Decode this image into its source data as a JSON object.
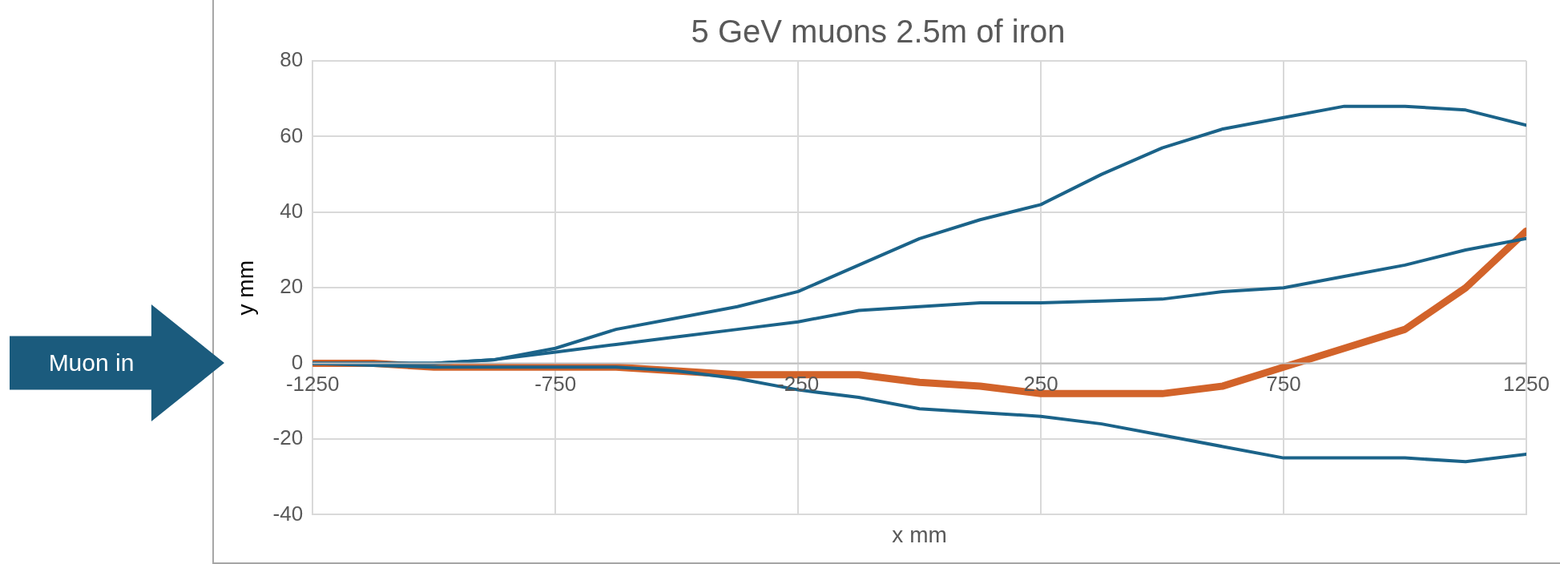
{
  "chart_data": {
    "type": "line",
    "title": "5 GeV muons 2.5m of iron",
    "xlabel": "x mm",
    "ylabel": "y mm",
    "annotations": [
      "Muon in"
    ],
    "x": [
      -1250,
      -1125,
      -1000,
      -875,
      -750,
      -625,
      -500,
      -375,
      -250,
      -125,
      0,
      125,
      250,
      375,
      500,
      625,
      750,
      875,
      1000,
      1125,
      1250
    ],
    "xlim": [
      -1250,
      1250
    ],
    "xticks": [
      -1250,
      -750,
      -250,
      250,
      750,
      1250
    ],
    "ylim": [
      -40,
      80
    ],
    "yticks": [
      -40,
      -20,
      0,
      20,
      40,
      60,
      80
    ],
    "grid": true,
    "legend": false,
    "marker": "none",
    "line_style": "solid",
    "series": [
      {
        "color": "#1b6389",
        "values": [
          0,
          0,
          0,
          1,
          4,
          9,
          12,
          15,
          19,
          26,
          33,
          38,
          42,
          50,
          57,
          62,
          65,
          68,
          68,
          67,
          63
        ]
      },
      {
        "color": "#1b6389",
        "values": [
          0,
          0,
          0,
          1,
          3,
          5,
          7,
          9,
          11,
          14,
          15,
          16,
          16,
          16.5,
          17,
          19,
          20,
          23,
          26,
          30,
          33
        ]
      },
      {
        "color": "#1b6389",
        "values": [
          0,
          -0.5,
          -1,
          -1,
          -1,
          -1,
          -2,
          -4,
          -7,
          -9,
          -12,
          -13,
          -14,
          -16,
          -19,
          -22,
          -25,
          -25,
          -25,
          -26,
          -24
        ]
      },
      {
        "color": "#d2632a",
        "values": [
          0,
          0,
          -1,
          -1,
          -1,
          -1,
          -2,
          -3,
          -3,
          -3,
          -5,
          -6,
          -8,
          -8,
          -8,
          -6,
          -1,
          4,
          9,
          20,
          35
        ]
      }
    ]
  }
}
